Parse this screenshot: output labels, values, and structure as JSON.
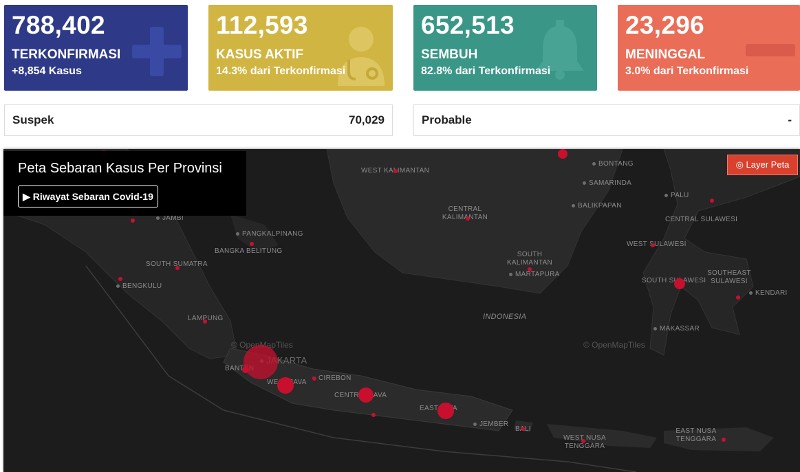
{
  "cards": [
    {
      "number": "788,402",
      "label": "TERKONFIRMASI",
      "sub": "+8,854 Kasus",
      "color": "#2e3a87",
      "icon": "plus-icon"
    },
    {
      "number": "112,593",
      "label": "KASUS AKTIF",
      "sub": "14.3% dari Terkonfirmasi",
      "color": "#d1b542",
      "icon": "doctor-icon"
    },
    {
      "number": "652,513",
      "label": "SEMBUH",
      "sub": "82.8% dari Terkonfirmasi",
      "color": "#3a9687",
      "icon": "bell-icon"
    },
    {
      "number": "23,296",
      "label": "MENINGGAL",
      "sub": "3.0% dari Terkonfirmasi",
      "color": "#ea6d57",
      "icon": "minus-icon"
    }
  ],
  "stats": {
    "suspek": {
      "label": "Suspek",
      "value": "70,029"
    },
    "probable": {
      "label": "Probable",
      "value": "-"
    }
  },
  "map": {
    "title": "Peta Sebaran Kasus Per Provinsi",
    "history_button": "▶ Riwayat Sebaran Covid-19",
    "layer_button": "◎ Layer Peta",
    "credit": "© OpenMapTiles",
    "labels": {
      "west_kalimantan": "WEST KALIMANTAN",
      "central_kalimantan": "CENTRAL KALIMANTAN",
      "south_kalimantan": "SOUTH KALIMANTAN",
      "bontang": "BONTANG",
      "samarinda": "SAMARINDA",
      "balikpapan": "BALIKPAPAN",
      "martapura": "MARTAPURA",
      "palu": "PALU",
      "central_sulawesi": "CENTRAL SULAWESI",
      "west_sulawesi": "WEST SULAWESI",
      "south_sulawesi": "SOUTH SULAWESI",
      "southeast_sulawesi": "SOUTHEAST SULAWESI",
      "kendari": "KENDARI",
      "makassar": "MAKASSAR",
      "indonesia": "INDONESIA",
      "jambi": "JAMBI",
      "pangkalpinang": "PANGKALPINANG",
      "bangka_belitung": "BANGKA BELITUNG",
      "south_sumatra": "SOUTH SUMATRA",
      "bengkulu": "BENGKULU",
      "lampung": "LAMPUNG",
      "jakarta": "JAKARTA",
      "banten": "BANTEN",
      "west_java": "WEST JAVA",
      "cirebon": "CIREBON",
      "central_java": "CENTRAL JAVA",
      "east_java": "EAST JAVA",
      "jember": "JEMBER",
      "bali": "BALI",
      "west_nusa_tenggara": "WEST NUSA TENGGARA",
      "east_nusa_tenggara": "EAST NUSA TENGGARA"
    }
  }
}
